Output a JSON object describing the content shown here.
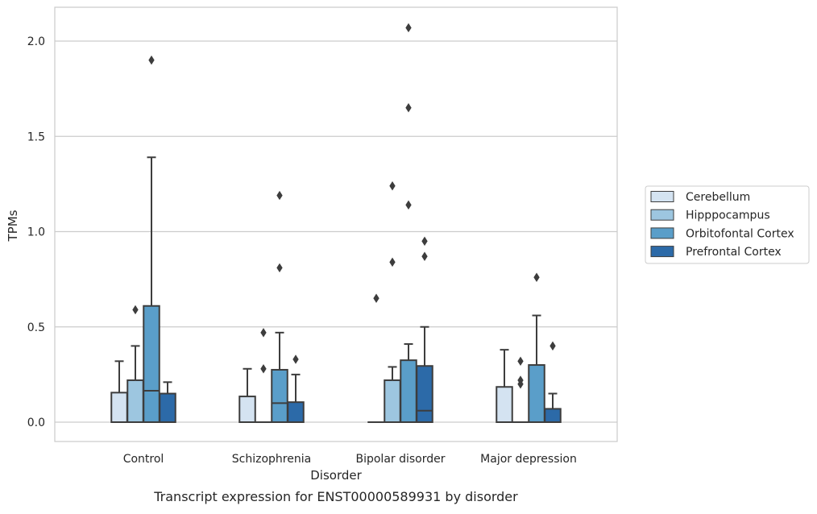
{
  "chart_data": {
    "type": "box",
    "title": "Transcript expression for ENST00000589931 by disorder",
    "xlabel": "Disorder",
    "ylabel": "TPMs",
    "categories": [
      "Control",
      "Schizophrenia",
      "Bipolar disorder",
      "Major depression"
    ],
    "ylim": [
      -0.1,
      2.18
    ],
    "yticks": [
      0.0,
      0.5,
      1.0,
      1.5,
      2.0
    ],
    "ytick_labels": [
      "0.0",
      "0.5",
      "1.0",
      "1.5",
      "2.0"
    ],
    "grid": "horizontal",
    "legend_position": "right",
    "series": [
      {
        "name": "Cerebellum",
        "color": "#d4e3f1",
        "boxes": [
          {
            "q1": 0.0,
            "median": 0.0,
            "q3": 0.155,
            "whisker_low": 0.0,
            "whisker_high": 0.32,
            "outliers": []
          },
          {
            "q1": 0.0,
            "median": 0.0,
            "q3": 0.135,
            "whisker_low": 0.0,
            "whisker_high": 0.28,
            "outliers": []
          },
          {
            "q1": 0.0,
            "median": 0.0,
            "q3": 0.0,
            "whisker_low": 0.0,
            "whisker_high": 0.0,
            "outliers": [
              0.65
            ]
          },
          {
            "q1": 0.0,
            "median": 0.0,
            "q3": 0.185,
            "whisker_low": 0.0,
            "whisker_high": 0.38,
            "outliers": []
          }
        ]
      },
      {
        "name": "Hipppocampus",
        "color": "#9dc6e0",
        "boxes": [
          {
            "q1": 0.0,
            "median": 0.0,
            "q3": 0.22,
            "whisker_low": 0.0,
            "whisker_high": 0.4,
            "outliers": [
              0.59
            ]
          },
          {
            "q1": 0.0,
            "median": 0.0,
            "q3": 0.0,
            "whisker_low": 0.0,
            "whisker_high": 0.0,
            "outliers": [
              0.28,
              0.47
            ]
          },
          {
            "q1": 0.0,
            "median": 0.0,
            "q3": 0.22,
            "whisker_low": 0.0,
            "whisker_high": 0.29,
            "outliers": [
              0.84,
              1.24
            ]
          },
          {
            "q1": 0.0,
            "median": 0.0,
            "q3": 0.0,
            "whisker_low": 0.0,
            "whisker_high": 0.0,
            "outliers": [
              0.2,
              0.22,
              0.32
            ]
          }
        ]
      },
      {
        "name": "Orbitofontal Cortex",
        "color": "#5a9ec9",
        "boxes": [
          {
            "q1": 0.0,
            "median": 0.165,
            "q3": 0.61,
            "whisker_low": 0.0,
            "whisker_high": 1.39,
            "outliers": [
              1.9
            ]
          },
          {
            "q1": 0.0,
            "median": 0.1,
            "q3": 0.275,
            "whisker_low": 0.0,
            "whisker_high": 0.47,
            "outliers": [
              0.81,
              1.19
            ]
          },
          {
            "q1": 0.0,
            "median": 0.0,
            "q3": 0.325,
            "whisker_low": 0.0,
            "whisker_high": 0.41,
            "outliers": [
              1.14,
              1.65,
              2.07
            ]
          },
          {
            "q1": 0.0,
            "median": 0.0,
            "q3": 0.3,
            "whisker_low": 0.0,
            "whisker_high": 0.56,
            "outliers": [
              0.76
            ]
          }
        ]
      },
      {
        "name": "Prefrontal Cortex",
        "color": "#2c6aa8",
        "boxes": [
          {
            "q1": 0.0,
            "median": 0.0,
            "q3": 0.15,
            "whisker_low": 0.0,
            "whisker_high": 0.21,
            "outliers": []
          },
          {
            "q1": 0.0,
            "median": 0.0,
            "q3": 0.105,
            "whisker_low": 0.0,
            "whisker_high": 0.25,
            "outliers": [
              0.33
            ]
          },
          {
            "q1": 0.0,
            "median": 0.06,
            "q3": 0.295,
            "whisker_low": 0.0,
            "whisker_high": 0.5,
            "outliers": [
              0.87,
              0.95
            ]
          },
          {
            "q1": 0.0,
            "median": 0.0,
            "q3": 0.07,
            "whisker_low": 0.0,
            "whisker_high": 0.15,
            "outliers": [
              0.4
            ]
          }
        ]
      }
    ],
    "colors": {
      "grid": "#cccccc",
      "frame": "#cccccc",
      "box_edge": "#3d3d3d",
      "text": "#262626"
    }
  }
}
